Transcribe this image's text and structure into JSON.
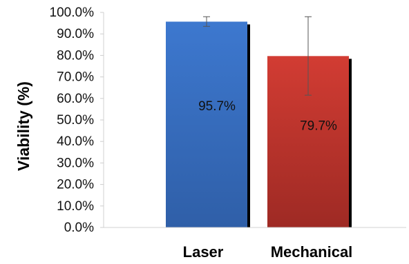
{
  "chart_data": {
    "type": "bar",
    "categories": [
      "Laser",
      "Mechanical"
    ],
    "values": [
      95.7,
      79.7
    ],
    "data_labels": [
      "95.7%",
      "79.7%"
    ],
    "error_bars": [
      {
        "low": 93.5,
        "high": 98.0
      },
      {
        "low": 61.5,
        "high": 98.0
      }
    ],
    "colors": [
      "#3a6fc1",
      "#c8382e"
    ],
    "ylabel": "Viability (%)",
    "xlabel": "",
    "title": "",
    "ylim": [
      0,
      100
    ],
    "yticks": [
      0,
      10,
      20,
      30,
      40,
      50,
      60,
      70,
      80,
      90,
      100
    ],
    "ytick_labels": [
      "0.0%",
      "10.0%",
      "20.0%",
      "30.0%",
      "40.0%",
      "50.0%",
      "60.0%",
      "70.0%",
      "80.0%",
      "90.0%",
      "100.0%"
    ],
    "grid": false,
    "legend": "none"
  }
}
